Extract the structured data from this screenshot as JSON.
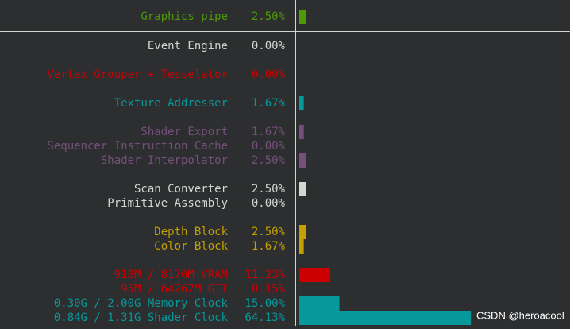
{
  "rows": [
    {
      "label": "Graphics pipe",
      "value": 2.5,
      "value_label": "2.50%",
      "color": "#4e9a06"
    },
    {
      "label": "Event Engine",
      "value": 0,
      "value_label": "0.00%",
      "color": "#d3d7cf"
    },
    {
      "label": "Vertex Grouper + Tesselator",
      "value": 0,
      "value_label": "0.00%",
      "color": "#cc0000"
    },
    {
      "label": "Texture Addresser",
      "value": 1.67,
      "value_label": "1.67%",
      "color": "#06989a"
    },
    {
      "label": "Shader Export",
      "value": 1.67,
      "value_label": "1.67%",
      "color": "#75507b"
    },
    {
      "label": "Sequencer Instruction Cache",
      "value": 0,
      "value_label": "0.00%",
      "color": "#75507b"
    },
    {
      "label": "Shader Interpolator",
      "value": 2.5,
      "value_label": "2.50%",
      "color": "#75507b"
    },
    {
      "label": "Scan Converter",
      "value": 2.5,
      "value_label": "2.50%",
      "color": "#d3d7cf"
    },
    {
      "label": "Primitive Assembly",
      "value": 0,
      "value_label": "0.00%",
      "color": "#d3d7cf"
    },
    {
      "label": "Depth Block",
      "value": 2.5,
      "value_label": "2.50%",
      "color": "#c4a000"
    },
    {
      "label": "Color Block",
      "value": 1.67,
      "value_label": "1.67%",
      "color": "#c4a000"
    },
    {
      "label": "918M / 8170M VRAM",
      "value": 11.23,
      "value_label": "11.23%",
      "color": "#cc0000"
    },
    {
      "label": "95M / 64262M GTT",
      "value": 0.15,
      "value_label": "0.15%",
      "color": "#cc0000"
    },
    {
      "label": "0.30G / 2.00G Memory Clock",
      "value": 15,
      "value_label": "15.00%",
      "color": "#06989a"
    },
    {
      "label": "0.84G / 1.31G Shader Clock",
      "value": 64.13,
      "value_label": "64.13%",
      "color": "#06989a"
    }
  ],
  "watermark": "CSDN @heroacool"
}
